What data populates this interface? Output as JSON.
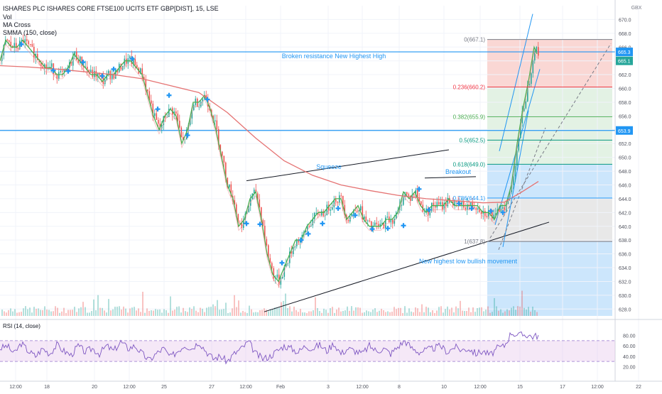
{
  "header": {
    "symbol_line": "ISHARES PLC ISHARES CORE FTSE100 UCITS ETF GBP[DIST], 15, LSE",
    "indicators": [
      "Vol",
      "MA Cross",
      "SMMA (150, close)"
    ]
  },
  "currency": "GBX",
  "annotations": {
    "resistance": "Broken resistance New Highest High",
    "squeeze": "Squeeze",
    "breakout": "Breakout",
    "higher_low": "New highest low bullish movement"
  },
  "price_labels": [
    {
      "text": "665.3",
      "price": 665.3,
      "color": "#2196f3"
    },
    {
      "text": "665.1",
      "price": 664.0,
      "color": "#26a69a"
    },
    {
      "text": "653.9",
      "price": 653.9,
      "color": "#2196f3"
    }
  ],
  "fib_levels": [
    {
      "label": "0(667.1)",
      "value": 667.1,
      "color": "#787b86"
    },
    {
      "label": "0.236(660.2)",
      "value": 660.2,
      "color": "#f23645"
    },
    {
      "label": "0.382(655.9)",
      "value": 655.9,
      "color": "#4caf50"
    },
    {
      "label": "0.5(652.5)",
      "value": 652.5,
      "color": "#089981"
    },
    {
      "label": "0.618(649.0)",
      "value": 649.0,
      "color": "#089981"
    },
    {
      "label": "0.786(644.1)",
      "value": 644.1,
      "color": "#2196f3"
    },
    {
      "label": "1(637.8)",
      "value": 637.8,
      "color": "#787b86"
    }
  ],
  "rsi": {
    "title": "RSI (14, close)",
    "ticks": [
      "80.00",
      "60.00",
      "40.00",
      "20.00"
    ],
    "tick_values": [
      80,
      60,
      40,
      20
    ],
    "bands": [
      30,
      70
    ]
  },
  "colors": {
    "up": "#26a69a",
    "down": "#ef5350",
    "ma_fast": "#4caf50",
    "smma": "#e57373",
    "rsi": "#7e57c2",
    "rsi_band": "#e1bee7",
    "fib_red": "#f8c9c5",
    "fib_green": "#d9eedb",
    "fib_blue": "#bbdefb",
    "fib_gray": "#e0e0e0"
  },
  "chart_data": {
    "type": "candlestick",
    "ylim": [
      627,
      672
    ],
    "yticks": [
      628,
      630,
      632,
      634,
      636,
      638,
      640,
      642,
      644,
      646,
      648,
      650,
      652,
      654,
      656,
      658,
      660,
      662,
      664,
      666,
      668,
      670
    ],
    "ytick_labels": [
      "628.0",
      "630.0",
      "632.0",
      "634.0",
      "636.0",
      "638.0",
      "640.0",
      "642.0",
      "644.0",
      "646.0",
      "648.0",
      "650.0",
      "652.0",
      "654.0",
      "656.0",
      "658.0",
      "660.0",
      "662.0",
      "664.0",
      "666.0",
      "668.0",
      "670.0"
    ],
    "xticks": [
      "12:00",
      "18",
      "20",
      "12:00",
      "25",
      "27",
      "12:00",
      "Feb",
      "3",
      "12:00",
      "8",
      "10",
      "12:00",
      "15",
      "17",
      "12:00",
      "22"
    ],
    "close_path": [
      [
        0,
        664
      ],
      [
        8,
        667
      ],
      [
        16,
        666
      ],
      [
        24,
        666
      ],
      [
        32,
        667
      ],
      [
        40,
        666
      ],
      [
        48,
        665
      ],
      [
        56,
        664
      ],
      [
        64,
        663
      ],
      [
        72,
        663
      ],
      [
        80,
        662
      ],
      [
        88,
        662
      ],
      [
        96,
        663
      ],
      [
        104,
        665
      ],
      [
        112,
        664
      ],
      [
        120,
        663
      ],
      [
        128,
        662
      ],
      [
        136,
        662
      ],
      [
        144,
        661
      ],
      [
        152,
        662
      ],
      [
        160,
        662
      ],
      [
        168,
        663
      ],
      [
        176,
        664
      ],
      [
        184,
        664
      ],
      [
        192,
        663
      ],
      [
        200,
        662
      ],
      [
        208,
        659
      ],
      [
        216,
        656
      ],
      [
        224,
        654
      ],
      [
        232,
        656
      ],
      [
        240,
        657
      ],
      [
        248,
        656
      ],
      [
        256,
        652
      ],
      [
        264,
        654
      ],
      [
        272,
        658
      ],
      [
        280,
        658
      ],
      [
        288,
        659
      ],
      [
        296,
        657
      ],
      [
        304,
        654
      ],
      [
        312,
        650
      ],
      [
        320,
        646
      ],
      [
        328,
        644
      ],
      [
        336,
        640
      ],
      [
        344,
        641
      ],
      [
        352,
        644
      ],
      [
        360,
        645
      ],
      [
        368,
        641
      ],
      [
        376,
        636
      ],
      [
        384,
        633
      ],
      [
        392,
        632
      ],
      [
        400,
        634
      ],
      [
        408,
        636
      ],
      [
        416,
        638
      ],
      [
        424,
        638
      ],
      [
        432,
        640
      ],
      [
        440,
        641
      ],
      [
        448,
        642
      ],
      [
        456,
        642
      ],
      [
        464,
        643
      ],
      [
        472,
        644
      ],
      [
        480,
        644
      ],
      [
        488,
        641
      ],
      [
        496,
        642
      ],
      [
        504,
        643
      ],
      [
        512,
        641
      ],
      [
        520,
        640
      ],
      [
        528,
        640
      ],
      [
        536,
        640
      ],
      [
        544,
        641
      ],
      [
        552,
        641
      ],
      [
        560,
        642
      ],
      [
        568,
        645
      ],
      [
        576,
        644
      ],
      [
        584,
        645
      ],
      [
        592,
        643
      ],
      [
        600,
        642
      ],
      [
        608,
        643
      ],
      [
        616,
        643
      ],
      [
        624,
        643
      ],
      [
        632,
        644
      ],
      [
        640,
        643
      ],
      [
        648,
        643
      ],
      [
        656,
        643
      ],
      [
        664,
        643
      ],
      [
        672,
        643
      ],
      [
        680,
        642
      ],
      [
        688,
        642
      ],
      [
        696,
        641
      ],
      [
        704,
        643
      ],
      [
        712,
        643
      ],
      [
        720,
        646
      ],
      [
        728,
        652
      ],
      [
        736,
        657
      ],
      [
        744,
        661
      ],
      [
        752,
        666
      ],
      [
        756,
        665
      ]
    ],
    "smma_path": [
      [
        0,
        663.3
      ],
      [
        40,
        663.1
      ],
      [
        80,
        662.8
      ],
      [
        120,
        662.4
      ],
      [
        160,
        662.0
      ],
      [
        200,
        661.4
      ],
      [
        240,
        660.4
      ],
      [
        280,
        659.4
      ],
      [
        320,
        656.5
      ],
      [
        360,
        652.8
      ],
      [
        400,
        649.5
      ],
      [
        440,
        647.4
      ],
      [
        480,
        646.0
      ],
      [
        520,
        645.2
      ],
      [
        560,
        644.5
      ],
      [
        600,
        644.0
      ],
      [
        640,
        643.7
      ],
      [
        680,
        643.4
      ],
      [
        710,
        643.5
      ],
      [
        735,
        645.0
      ],
      [
        758,
        646.5
      ]
    ],
    "rsi_path": [
      [
        0,
        55
      ],
      [
        10,
        60
      ],
      [
        20,
        45
      ],
      [
        30,
        65
      ],
      [
        40,
        50
      ],
      [
        50,
        40
      ],
      [
        60,
        55
      ],
      [
        70,
        45
      ],
      [
        80,
        62
      ],
      [
        90,
        50
      ],
      [
        100,
        42
      ],
      [
        110,
        60
      ],
      [
        120,
        48
      ],
      [
        130,
        55
      ],
      [
        140,
        45
      ],
      [
        150,
        60
      ],
      [
        160,
        50
      ],
      [
        170,
        68
      ],
      [
        180,
        55
      ],
      [
        190,
        60
      ],
      [
        200,
        45
      ],
      [
        210,
        32
      ],
      [
        220,
        45
      ],
      [
        230,
        55
      ],
      [
        240,
        38
      ],
      [
        250,
        50
      ],
      [
        260,
        62
      ],
      [
        270,
        55
      ],
      [
        280,
        68
      ],
      [
        290,
        50
      ],
      [
        300,
        35
      ],
      [
        310,
        40
      ],
      [
        320,
        30
      ],
      [
        330,
        45
      ],
      [
        340,
        55
      ],
      [
        350,
        68
      ],
      [
        360,
        45
      ],
      [
        370,
        35
      ],
      [
        380,
        40
      ],
      [
        390,
        50
      ],
      [
        400,
        60
      ],
      [
        410,
        55
      ],
      [
        420,
        48
      ],
      [
        430,
        60
      ],
      [
        440,
        55
      ],
      [
        450,
        62
      ],
      [
        460,
        50
      ],
      [
        470,
        65
      ],
      [
        480,
        45
      ],
      [
        490,
        55
      ],
      [
        500,
        50
      ],
      [
        510,
        45
      ],
      [
        520,
        60
      ],
      [
        530,
        50
      ],
      [
        540,
        55
      ],
      [
        550,
        45
      ],
      [
        560,
        58
      ],
      [
        570,
        70
      ],
      [
        580,
        55
      ],
      [
        590,
        48
      ],
      [
        600,
        52
      ],
      [
        610,
        55
      ],
      [
        620,
        60
      ],
      [
        630,
        48
      ],
      [
        640,
        58
      ],
      [
        650,
        52
      ],
      [
        660,
        55
      ],
      [
        670,
        45
      ],
      [
        680,
        50
      ],
      [
        690,
        42
      ],
      [
        700,
        55
      ],
      [
        710,
        60
      ],
      [
        720,
        86
      ],
      [
        730,
        80
      ],
      [
        740,
        82
      ],
      [
        750,
        78
      ],
      [
        758,
        80
      ]
    ]
  }
}
